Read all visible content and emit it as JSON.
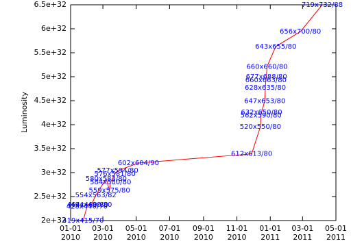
{
  "chart_data": {
    "type": "line",
    "y_label": "Luminosity",
    "x": [
      "2010-01-24",
      "2010-01-31",
      "2010-02-01",
      "2010-02-08",
      "2010-02-16",
      "2010-03-07",
      "2010-03-13",
      "2010-03-15",
      "2010-03-23",
      "2010-03-28",
      "2010-05-05",
      "2010-11-28",
      "2010-12-14",
      "2010-12-15",
      "2010-12-16",
      "2010-12-22",
      "2010-12-23",
      "2010-12-24",
      "2010-12-25",
      "2010-12-26",
      "2011-01-11",
      "2011-02-25",
      "2011-04-06"
    ],
    "series": [
      {
        "color": "#ff0000",
        "label_color": "#0000ff",
        "values": [
          2e+32,
          2.29e+32,
          2.33e+32,
          2.33e+32,
          2.53e+32,
          2.87e+32,
          2.63e+32,
          2.8e+32,
          2.97e+32,
          3.04e+32,
          3.2e+32,
          3.39e+32,
          3.96e+32,
          4.19e+32,
          4.26e+32,
          4.49e+32,
          4.77e+32,
          4.93e+32,
          5e+32,
          5.21e+32,
          5.63e+32,
          5.94e+32,
          6.5e+32
        ],
        "labels": [
          "419x415/70",
          "428x440/70",
          "464x460/80",
          "494x490/80",
          "554x563/82",
          "580x583/80",
          "559x575/80",
          "584x580/80",
          "576x581/80",
          "577x594/80",
          "602x604/90",
          "612x613/80",
          "520x550/80",
          "562x590/80",
          "632x650/80",
          "647x653/80",
          "628x635/80",
          "660x663/80",
          "677x688/80",
          "660x660/80",
          "643x655/80",
          "656x700/80",
          "719x732/88"
        ]
      }
    ],
    "xlim": [
      "2010-01-01",
      "2011-05-01"
    ],
    "xticks": [
      {
        "value": "2010-01-01",
        "label": [
          "01-01",
          "2010"
        ]
      },
      {
        "value": "2010-03-01",
        "label": [
          "03-01",
          "2010"
        ]
      },
      {
        "value": "2010-05-01",
        "label": [
          "05-01",
          "2010"
        ]
      },
      {
        "value": "2010-07-01",
        "label": [
          "07-01",
          "2010"
        ]
      },
      {
        "value": "2010-09-01",
        "label": [
          "09-01",
          "2010"
        ]
      },
      {
        "value": "2010-11-01",
        "label": [
          "11-01",
          "2010"
        ]
      },
      {
        "value": "2011-01-01",
        "label": [
          "01-01",
          "2011"
        ]
      },
      {
        "value": "2011-03-01",
        "label": [
          "03-01",
          "2011"
        ]
      },
      {
        "value": "2011-05-01",
        "label": [
          "05-01",
          "2011"
        ]
      }
    ],
    "ylim": [
      2e+32,
      6.5e+32
    ],
    "yticks": [
      {
        "value": 2e+32,
        "label": "2e+32"
      },
      {
        "value": 2.5e+32,
        "label": "2.5e+32"
      },
      {
        "value": 3e+32,
        "label": "3e+32"
      },
      {
        "value": 3.5e+32,
        "label": "3.5e+32"
      },
      {
        "value": 4e+32,
        "label": "4e+32"
      },
      {
        "value": 4.5e+32,
        "label": "4.5e+32"
      },
      {
        "value": 5e+32,
        "label": "5e+32"
      },
      {
        "value": 5.5e+32,
        "label": "5.5e+32"
      },
      {
        "value": 6e+32,
        "label": "6e+32"
      },
      {
        "value": 6.5e+32,
        "label": "6.5e+32"
      }
    ]
  }
}
